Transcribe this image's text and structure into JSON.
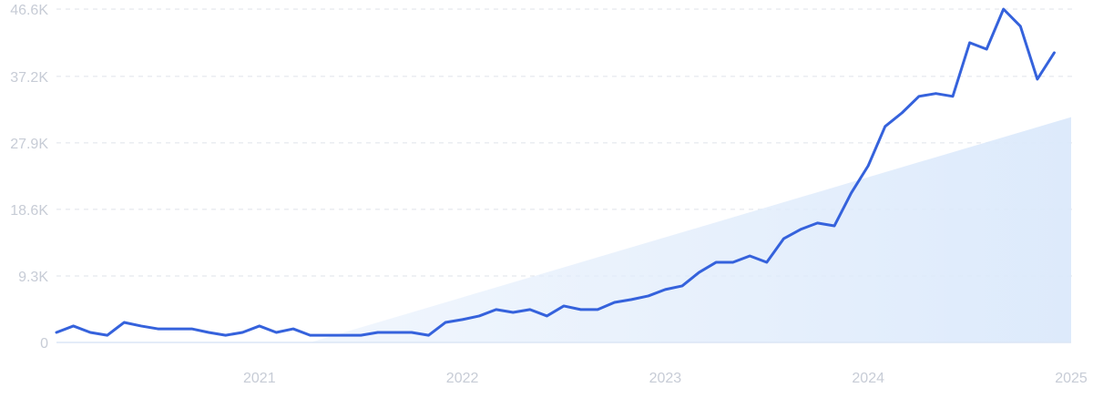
{
  "chart_data": {
    "type": "line",
    "title": "",
    "xlabel": "",
    "ylabel": "",
    "grid": true,
    "legend": "none",
    "colors": {
      "line": "#3562dc",
      "trend_fill": "#dbe9fb",
      "grid": "#dfe3ea",
      "tick_text": "#c7ccd6"
    },
    "xlim": [
      "2020-01",
      "2025-01"
    ],
    "ylim": [
      0,
      46600
    ],
    "y_ticks": [
      {
        "value": 0,
        "label": "0"
      },
      {
        "value": 9300,
        "label": "9.3K"
      },
      {
        "value": 18600,
        "label": "18.6K"
      },
      {
        "value": 27900,
        "label": "27.9K"
      },
      {
        "value": 37200,
        "label": "37.2K"
      },
      {
        "value": 46600,
        "label": "46.6K"
      }
    ],
    "x_ticks": [
      {
        "value": "2021-01",
        "label": "2021"
      },
      {
        "value": "2022-01",
        "label": "2022"
      },
      {
        "value": "2023-01",
        "label": "2023"
      },
      {
        "value": "2024-01",
        "label": "2024"
      },
      {
        "value": "2025-01",
        "label": "2025"
      }
    ],
    "trend": {
      "start": {
        "x": "2021-04",
        "y": 0
      },
      "end": {
        "x": "2025-01",
        "y": 31500
      }
    },
    "series": [
      {
        "x": [
          "2020-01",
          "2020-02",
          "2020-03",
          "2020-04",
          "2020-05",
          "2020-06",
          "2020-07",
          "2020-08",
          "2020-09",
          "2020-10",
          "2020-11",
          "2020-12",
          "2021-01",
          "2021-02",
          "2021-03",
          "2021-04",
          "2021-05",
          "2021-06",
          "2021-07",
          "2021-08",
          "2021-09",
          "2021-10",
          "2021-11",
          "2021-12",
          "2022-01",
          "2022-02",
          "2022-03",
          "2022-04",
          "2022-05",
          "2022-06",
          "2022-07",
          "2022-08",
          "2022-09",
          "2022-10",
          "2022-11",
          "2022-12",
          "2023-01",
          "2023-02",
          "2023-03",
          "2023-04",
          "2023-05",
          "2023-06",
          "2023-07",
          "2023-08",
          "2023-09",
          "2023-10",
          "2023-11",
          "2023-12",
          "2024-01",
          "2024-02",
          "2024-03",
          "2024-04",
          "2024-05",
          "2024-06",
          "2024-07",
          "2024-08",
          "2024-09",
          "2024-10",
          "2024-11",
          "2024-12",
          "2025-01"
        ],
        "values": [
          1400,
          2300,
          1400,
          1000,
          2800,
          2300,
          1900,
          1900,
          1900,
          1400,
          1000,
          1400,
          2300,
          1400,
          1900,
          1000,
          1000,
          1000,
          1000,
          1400,
          1400,
          1400,
          1000,
          2800,
          3200,
          3700,
          4600,
          4200,
          4600,
          3700,
          5100,
          4600,
          4600,
          5600,
          6000,
          6500,
          7400,
          7900,
          9800,
          11200,
          11200,
          12100,
          11200,
          14500,
          15800,
          16700,
          16300,
          20900,
          24700,
          30200,
          32100,
          34400,
          34800,
          34400,
          41900,
          41000,
          46600,
          44200,
          36800,
          40500,
          null
        ]
      }
    ]
  }
}
